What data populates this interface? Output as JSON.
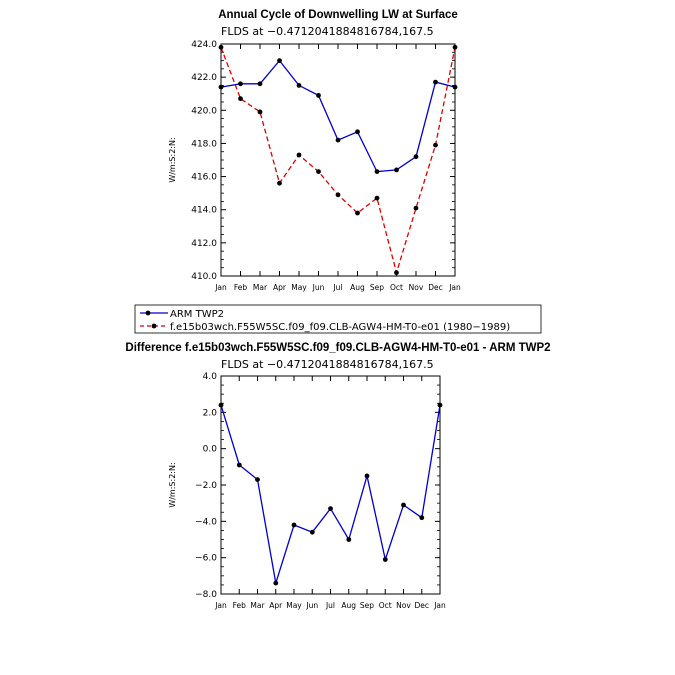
{
  "chart_data": [
    {
      "type": "line",
      "title": "Annual Cycle of Downwelling LW at Surface",
      "subtitle": "FLDS at −0.4712041884816784,167.5",
      "ylabel": "W/m:S:2:N:",
      "categories": [
        "Jan",
        "Feb",
        "Mar",
        "Apr",
        "May",
        "Jun",
        "Jul",
        "Aug",
        "Sep",
        "Oct",
        "Nov",
        "Dec",
        "Jan"
      ],
      "ylim": [
        410.0,
        424.0
      ],
      "yticks": [
        "410.0",
        "412.0",
        "414.0",
        "416.0",
        "418.0",
        "420.0",
        "422.0",
        "424.0"
      ],
      "series": [
        {
          "name": "ARM TWP2",
          "color": "#0000cc",
          "dash": "solid",
          "values": [
            421.4,
            421.6,
            421.6,
            423.0,
            421.5,
            420.9,
            418.2,
            418.7,
            416.3,
            416.4,
            417.2,
            421.7,
            421.4
          ]
        },
        {
          "name": "f.e15b03wch.F55W5SC.f09_f09.CLB-AGW4-HM-T0-e01 (1980−1989)",
          "color": "#dd0000",
          "dash": "dashed",
          "values": [
            423.8,
            420.7,
            419.9,
            415.6,
            417.3,
            416.3,
            414.9,
            413.8,
            414.7,
            410.2,
            414.1,
            417.9,
            423.8
          ]
        }
      ]
    },
    {
      "type": "line",
      "title": "Difference f.e15b03wch.F55W5SC.f09_f09.CLB-AGW4-HM-T0-e01 - ARM TWP2",
      "subtitle": "FLDS at −0.4712041884816784,167.5",
      "ylabel": "W/m:S:2:N:",
      "categories": [
        "Jan",
        "Feb",
        "Mar",
        "Apr",
        "May",
        "Jun",
        "Jul",
        "Aug",
        "Sep",
        "Oct",
        "Nov",
        "Dec",
        "Jan"
      ],
      "ylim": [
        -8.0,
        4.0
      ],
      "yticks": [
        "−8.0",
        "−6.0",
        "−4.0",
        "−2.0",
        "0.0",
        "2.0",
        "4.0"
      ],
      "series": [
        {
          "name": "Difference",
          "color": "#0000cc",
          "dash": "solid",
          "values": [
            2.4,
            -0.9,
            -1.7,
            -7.4,
            -4.2,
            -4.6,
            -3.3,
            -5.0,
            -1.5,
            -6.1,
            -3.1,
            -3.8,
            2.4
          ]
        }
      ]
    }
  ],
  "legend": {
    "items": [
      {
        "label": "ARM TWP2",
        "color": "#0000cc",
        "dash": "solid"
      },
      {
        "label": "f.e15b03wch.F55W5SC.f09_f09.CLB-AGW4-HM-T0-e01 (1980−1989)",
        "color": "#dd0000",
        "dash": "dashed"
      }
    ]
  }
}
